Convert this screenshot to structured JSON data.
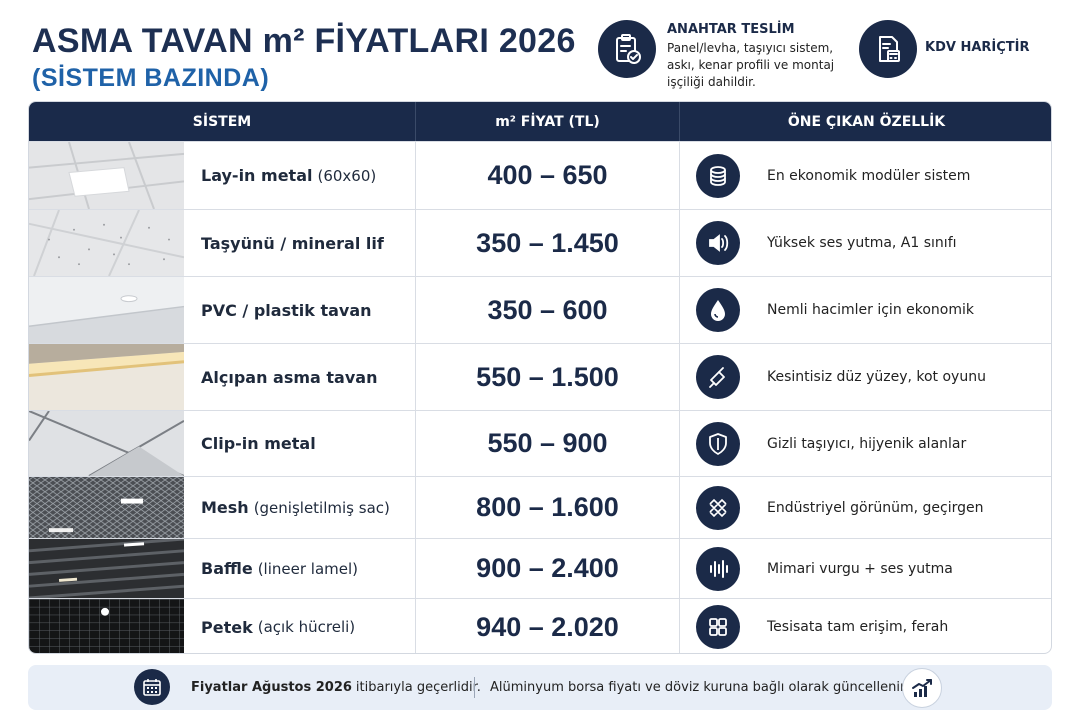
{
  "header": {
    "title": "ASMA TAVAN m² FİYATLARI 2026",
    "subtitle": "(SİSTEM BAZINDA)",
    "badge1": {
      "icon": "clipboard-check-icon",
      "title": "ANAHTAR TESLİM",
      "description": "Panel/levha, taşıyıcı sistem, askı, kenar profili ve montaj işçiliği dahildir."
    },
    "badge2": {
      "icon": "calculator-document-icon",
      "title": "KDV HARİÇTİR"
    }
  },
  "table": {
    "columns": [
      "SİSTEM",
      "m² FİYAT (TL)",
      "ÖNE ÇIKAN ÖZELLİK"
    ],
    "rows": [
      {
        "name": "Lay-in metal",
        "note": "(60x60)",
        "price": "400 – 650",
        "feature": "En ekonomik modüler sistem",
        "icon": "coins-stack-icon"
      },
      {
        "name": "Taşyünü / mineral lif",
        "note": "",
        "price": "350 – 1.450",
        "feature": "Yüksek ses yutma, A1 sınıfı",
        "icon": "speaker-sound-icon"
      },
      {
        "name": "PVC / plastik tavan",
        "note": "",
        "price": "350 – 600",
        "feature": "Nemli hacimler için ekonomik",
        "icon": "water-drop-icon"
      },
      {
        "name": "Alçıpan asma tavan",
        "note": "",
        "price": "550 – 1.500",
        "feature": "Kesintisiz düz yüzey, kot oyunu",
        "icon": "trowel-icon"
      },
      {
        "name": "Clip-in metal",
        "note": "",
        "price": "550 – 900",
        "feature": "Gizli taşıyıcı, hijyenik alanlar",
        "icon": "shield-icon"
      },
      {
        "name": "Mesh",
        "note": "(genişletilmiş sac)",
        "price": "800 – 1.600",
        "feature": "Endüstriyel görünüm, geçirgen",
        "icon": "mesh-grid-icon"
      },
      {
        "name": "Baffle",
        "note": "(lineer lamel)",
        "price": "900 – 2.400",
        "feature": "Mimari vurgu + ses yutma",
        "icon": "sound-wave-icon"
      },
      {
        "name": "Petek",
        "note": "(açık hücreli)",
        "price": "940 – 2.020",
        "feature": "Tesisata tam erişim, ferah",
        "icon": "grid-cells-icon"
      }
    ]
  },
  "footer": {
    "calendar_icon": "calendar-icon",
    "note1_bold": "Fiyatlar Ağustos 2026",
    "note1_rest": "itibarıyla geçerlidir.",
    "note2": "Alüminyum borsa fiyatı ve döviz kuruna bağlı olarak güncellenir.",
    "chart_icon": "trend-up-chart-icon"
  },
  "colors": {
    "navy": "#1b2a48",
    "header_blue": "#1f62a8",
    "footer_bg": "#e8eef7"
  }
}
